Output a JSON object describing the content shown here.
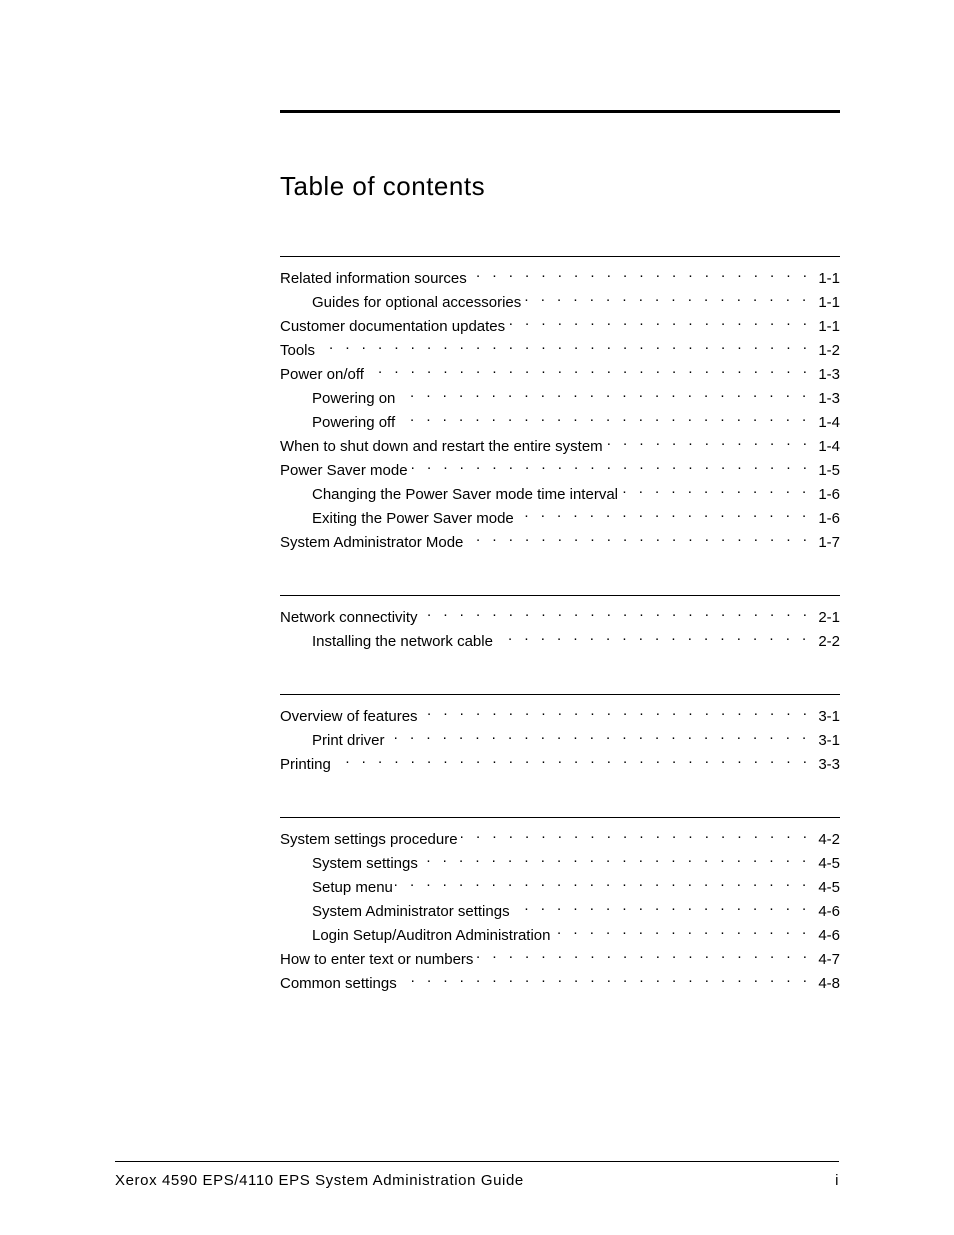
{
  "title": "Table of contents",
  "footer": {
    "left": "Xerox 4590 EPS/4110 EPS System Administration Guide",
    "right": "i"
  },
  "sections": [
    {
      "id": "s1",
      "entries": [
        {
          "level": 1,
          "label": "Related information sources",
          "page": "1-1"
        },
        {
          "level": 2,
          "label": "Guides for optional accessories",
          "page": "1-1"
        },
        {
          "level": 1,
          "label": "Customer documentation updates",
          "page": "1-1"
        },
        {
          "level": 1,
          "label": "Tools",
          "page": "1-2"
        },
        {
          "level": 1,
          "label": "Power on/off",
          "page": "1-3"
        },
        {
          "level": 2,
          "label": "Powering on",
          "page": "1-3"
        },
        {
          "level": 2,
          "label": "Powering off",
          "page": "1-4"
        },
        {
          "level": 1,
          "label": "When to shut down and restart the entire system",
          "page": "1-4"
        },
        {
          "level": 1,
          "label": "Power Saver mode",
          "page": "1-5"
        },
        {
          "level": 2,
          "label": "Changing the Power Saver mode time interval",
          "page": "1-6"
        },
        {
          "level": 2,
          "label": "Exiting the Power Saver mode",
          "page": "1-6"
        },
        {
          "level": 1,
          "label": "System Administrator Mode",
          "page": "1-7"
        }
      ]
    },
    {
      "id": "s2",
      "entries": [
        {
          "level": 1,
          "label": "Network connectivity",
          "page": "2-1"
        },
        {
          "level": 2,
          "label": "Installing the network cable",
          "page": "2-2"
        }
      ]
    },
    {
      "id": "s3",
      "entries": [
        {
          "level": 1,
          "label": "Overview of features",
          "page": "3-1"
        },
        {
          "level": 2,
          "label": "Print driver",
          "page": "3-1"
        },
        {
          "level": 1,
          "label": "Printing",
          "page": "3-3"
        }
      ]
    },
    {
      "id": "s4",
      "entries": [
        {
          "level": 1,
          "label": "System settings procedure",
          "page": "4-2"
        },
        {
          "level": 2,
          "label": "System settings",
          "page": "4-5"
        },
        {
          "level": 2,
          "label": "Setup menu",
          "page": "4-5"
        },
        {
          "level": 2,
          "label": "System Administrator settings",
          "page": "4-6"
        },
        {
          "level": 2,
          "label": "Login Setup/Auditron Administration",
          "page": "4-6"
        },
        {
          "level": 1,
          "label": "How to enter text or numbers",
          "page": "4-7"
        },
        {
          "level": 1,
          "label": "Common settings",
          "page": "4-8"
        }
      ]
    }
  ]
}
